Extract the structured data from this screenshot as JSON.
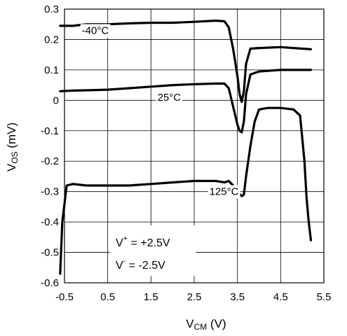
{
  "chart_data": {
    "type": "line",
    "xlabel": "V",
    "xlabel_sub": "CM",
    "xlabel_unit": " (V)",
    "ylabel": "V",
    "ylabel_sub": "OS",
    "ylabel_unit": " (mV)",
    "xlim": [
      -0.5,
      5.5
    ],
    "ylim": [
      -0.6,
      0.3
    ],
    "x_ticks": [
      -0.5,
      0.5,
      1.5,
      2.5,
      3.5,
      4.5,
      5.5
    ],
    "x_tick_labels": [
      "-0.5",
      "0.5",
      "1.5",
      "2.5",
      "3.5",
      "4.5",
      "5.5"
    ],
    "y_ticks": [
      0.3,
      0.2,
      0.1,
      0,
      -0.1,
      -0.2,
      -0.3,
      -0.4,
      -0.5,
      -0.6
    ],
    "y_tick_labels": [
      "0.3",
      "0.2",
      "0.1",
      "0",
      "-0.1",
      "-0.2",
      "-0.3",
      "-0.4",
      "-0.5",
      "-0.6"
    ],
    "grid": true,
    "series": [
      {
        "name": "-40°C",
        "x": [
          -0.6,
          -0.3,
          0,
          0.5,
          1,
          1.5,
          2,
          2.5,
          3,
          3.2,
          3.3,
          3.4,
          3.5,
          3.55,
          3.6,
          3.65,
          3.7,
          3.8,
          4,
          4.5,
          5,
          5.2
        ],
        "y": [
          0.245,
          0.245,
          0.25,
          0.25,
          0.253,
          0.255,
          0.255,
          0.258,
          0.262,
          0.26,
          0.24,
          0.17,
          0.08,
          0.02,
          -0.005,
          0.03,
          0.12,
          0.17,
          0.172,
          0.175,
          0.17,
          0.168
        ]
      },
      {
        "name": "25°C",
        "x": [
          -0.6,
          -0.3,
          0,
          0.5,
          1,
          1.5,
          2,
          2.5,
          3,
          3.2,
          3.3,
          3.4,
          3.5,
          3.55,
          3.6,
          3.65,
          3.7,
          3.8,
          4,
          4.5,
          5,
          5.2
        ],
        "y": [
          0.03,
          0.032,
          0.033,
          0.035,
          0.04,
          0.045,
          0.05,
          0.053,
          0.055,
          0.055,
          0.04,
          -0.02,
          -0.08,
          -0.1,
          -0.105,
          -0.07,
          0.02,
          0.085,
          0.095,
          0.1,
          0.1,
          0.1
        ]
      },
      {
        "name": "125°C",
        "x": [
          -0.6,
          -0.55,
          -0.45,
          -0.3,
          0,
          0.5,
          1,
          1.5,
          2,
          2.5,
          3,
          3.2,
          3.3,
          3.4,
          3.5,
          3.6,
          3.65,
          3.7,
          3.8,
          3.9,
          4,
          4.2,
          4.5,
          4.8,
          4.95,
          5.05,
          5.1,
          5.15,
          5.2
        ],
        "y": [
          -0.57,
          -0.4,
          -0.28,
          -0.275,
          -0.28,
          -0.28,
          -0.28,
          -0.275,
          -0.27,
          -0.265,
          -0.265,
          -0.27,
          -0.265,
          -0.28,
          -0.3,
          -0.315,
          -0.31,
          -0.25,
          -0.15,
          -0.07,
          -0.03,
          -0.025,
          -0.025,
          -0.03,
          -0.05,
          -0.2,
          -0.32,
          -0.4,
          -0.46
        ]
      }
    ],
    "series_labels": [
      {
        "text": "-40°C",
        "x": -0.1,
        "y": 0.23
      },
      {
        "text": "25°C",
        "x": 1.65,
        "y": 0.01
      },
      {
        "text": "125°C",
        "x": 2.85,
        "y": -0.3
      }
    ],
    "annotation": {
      "line1_main": "V",
      "line1_sup": "+",
      "line1_rest": " = +2.5V",
      "line2_main": "V",
      "line2_sup": "-",
      "line2_rest": " = -2.5V"
    }
  }
}
